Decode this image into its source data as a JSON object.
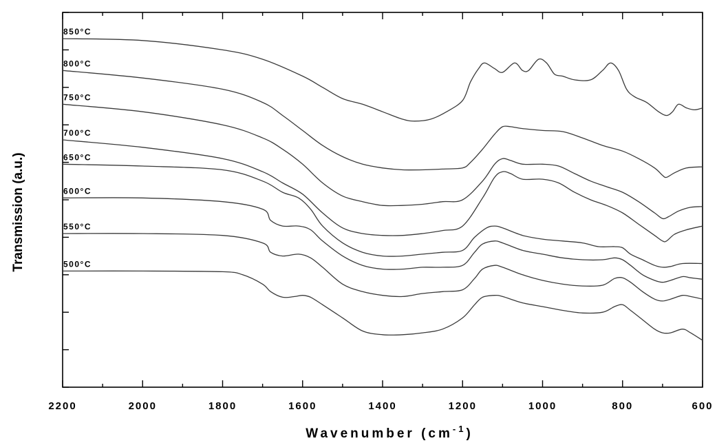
{
  "chart_data": {
    "type": "line",
    "xlabel": "Wavenumber (cm",
    "xlabel_superscript": "-1",
    "xlabel_close": ")",
    "ylabel": "Transmission (a.u.)",
    "xlim": [
      2200,
      600
    ],
    "x_reversed": true,
    "x_ticks": [
      2200,
      2000,
      1800,
      1600,
      1400,
      1200,
      1000,
      800,
      600
    ],
    "ylim": [
      0,
      10
    ],
    "y_tick_labels_shown": false,
    "grid": false,
    "line_color": "#3a3a3a",
    "series": [
      {
        "name": "850°C",
        "points": [
          [
            2200,
            9.3
          ],
          [
            2000,
            9.25
          ],
          [
            1800,
            9.0
          ],
          [
            1700,
            8.75
          ],
          [
            1600,
            8.3
          ],
          [
            1550,
            8.0
          ],
          [
            1500,
            7.7
          ],
          [
            1450,
            7.55
          ],
          [
            1400,
            7.35
          ],
          [
            1350,
            7.15
          ],
          [
            1320,
            7.1
          ],
          [
            1280,
            7.15
          ],
          [
            1240,
            7.35
          ],
          [
            1200,
            7.65
          ],
          [
            1180,
            8.15
          ],
          [
            1160,
            8.5
          ],
          [
            1145,
            8.65
          ],
          [
            1120,
            8.5
          ],
          [
            1100,
            8.4
          ],
          [
            1070,
            8.65
          ],
          [
            1050,
            8.45
          ],
          [
            1035,
            8.45
          ],
          [
            1010,
            8.75
          ],
          [
            990,
            8.65
          ],
          [
            970,
            8.35
          ],
          [
            950,
            8.3
          ],
          [
            920,
            8.2
          ],
          [
            880,
            8.2
          ],
          [
            850,
            8.45
          ],
          [
            830,
            8.65
          ],
          [
            810,
            8.45
          ],
          [
            790,
            7.95
          ],
          [
            770,
            7.75
          ],
          [
            740,
            7.6
          ],
          [
            710,
            7.35
          ],
          [
            690,
            7.25
          ],
          [
            675,
            7.35
          ],
          [
            660,
            7.55
          ],
          [
            640,
            7.45
          ],
          [
            620,
            7.4
          ],
          [
            600,
            7.45
          ]
        ]
      },
      {
        "name": "800°C",
        "points": [
          [
            2200,
            8.45
          ],
          [
            2000,
            8.25
          ],
          [
            1800,
            7.95
          ],
          [
            1700,
            7.6
          ],
          [
            1650,
            7.25
          ],
          [
            1600,
            6.85
          ],
          [
            1550,
            6.45
          ],
          [
            1500,
            6.15
          ],
          [
            1450,
            5.95
          ],
          [
            1400,
            5.85
          ],
          [
            1350,
            5.8
          ],
          [
            1300,
            5.8
          ],
          [
            1250,
            5.82
          ],
          [
            1200,
            5.85
          ],
          [
            1180,
            6.0
          ],
          [
            1150,
            6.35
          ],
          [
            1120,
            6.75
          ],
          [
            1100,
            6.95
          ],
          [
            1080,
            6.95
          ],
          [
            1050,
            6.9
          ],
          [
            1000,
            6.85
          ],
          [
            950,
            6.82
          ],
          [
            900,
            6.65
          ],
          [
            850,
            6.45
          ],
          [
            800,
            6.3
          ],
          [
            760,
            6.1
          ],
          [
            720,
            5.85
          ],
          [
            700,
            5.65
          ],
          [
            690,
            5.6
          ],
          [
            670,
            5.72
          ],
          [
            640,
            5.85
          ],
          [
            600,
            5.88
          ]
        ]
      },
      {
        "name": "750°C",
        "points": [
          [
            2200,
            7.55
          ],
          [
            2000,
            7.35
          ],
          [
            1800,
            7.0
          ],
          [
            1700,
            6.65
          ],
          [
            1650,
            6.35
          ],
          [
            1600,
            5.95
          ],
          [
            1550,
            5.45
          ],
          [
            1500,
            5.1
          ],
          [
            1450,
            4.95
          ],
          [
            1400,
            4.85
          ],
          [
            1350,
            4.85
          ],
          [
            1300,
            4.88
          ],
          [
            1250,
            4.95
          ],
          [
            1200,
            5.0
          ],
          [
            1150,
            5.5
          ],
          [
            1120,
            5.95
          ],
          [
            1100,
            6.1
          ],
          [
            1080,
            6.05
          ],
          [
            1050,
            5.95
          ],
          [
            1000,
            5.95
          ],
          [
            960,
            5.9
          ],
          [
            920,
            5.7
          ],
          [
            880,
            5.5
          ],
          [
            840,
            5.35
          ],
          [
            800,
            5.2
          ],
          [
            760,
            4.95
          ],
          [
            720,
            4.65
          ],
          [
            700,
            4.5
          ],
          [
            685,
            4.55
          ],
          [
            660,
            4.7
          ],
          [
            630,
            4.8
          ],
          [
            600,
            4.82
          ]
        ]
      },
      {
        "name": "700°C",
        "points": [
          [
            2200,
            6.6
          ],
          [
            2000,
            6.4
          ],
          [
            1800,
            6.1
          ],
          [
            1700,
            5.75
          ],
          [
            1650,
            5.45
          ],
          [
            1600,
            5.15
          ],
          [
            1550,
            4.65
          ],
          [
            1500,
            4.25
          ],
          [
            1450,
            4.1
          ],
          [
            1400,
            4.05
          ],
          [
            1350,
            4.05
          ],
          [
            1300,
            4.1
          ],
          [
            1250,
            4.18
          ],
          [
            1200,
            4.3
          ],
          [
            1150,
            5.05
          ],
          [
            1120,
            5.6
          ],
          [
            1100,
            5.75
          ],
          [
            1080,
            5.7
          ],
          [
            1050,
            5.55
          ],
          [
            1000,
            5.55
          ],
          [
            960,
            5.45
          ],
          [
            920,
            5.2
          ],
          [
            880,
            5.0
          ],
          [
            840,
            4.85
          ],
          [
            800,
            4.65
          ],
          [
            760,
            4.35
          ],
          [
            720,
            4.05
          ],
          [
            700,
            3.9
          ],
          [
            690,
            3.9
          ],
          [
            670,
            4.08
          ],
          [
            640,
            4.2
          ],
          [
            600,
            4.3
          ]
        ]
      },
      {
        "name": "650°C",
        "points": [
          [
            2200,
            5.95
          ],
          [
            2000,
            5.9
          ],
          [
            1800,
            5.8
          ],
          [
            1700,
            5.5
          ],
          [
            1650,
            5.2
          ],
          [
            1610,
            5.05
          ],
          [
            1580,
            4.75
          ],
          [
            1550,
            4.3
          ],
          [
            1500,
            3.85
          ],
          [
            1450,
            3.6
          ],
          [
            1400,
            3.5
          ],
          [
            1350,
            3.5
          ],
          [
            1300,
            3.55
          ],
          [
            1250,
            3.6
          ],
          [
            1200,
            3.65
          ],
          [
            1170,
            4.0
          ],
          [
            1140,
            4.25
          ],
          [
            1120,
            4.3
          ],
          [
            1100,
            4.25
          ],
          [
            1050,
            4.05
          ],
          [
            1000,
            3.95
          ],
          [
            950,
            3.9
          ],
          [
            900,
            3.85
          ],
          [
            860,
            3.75
          ],
          [
            820,
            3.75
          ],
          [
            800,
            3.72
          ],
          [
            780,
            3.55
          ],
          [
            750,
            3.4
          ],
          [
            720,
            3.25
          ],
          [
            700,
            3.2
          ],
          [
            680,
            3.22
          ],
          [
            650,
            3.3
          ],
          [
            600,
            3.3
          ]
        ]
      },
      {
        "name": "600°C",
        "points": [
          [
            2200,
            5.05
          ],
          [
            2000,
            5.05
          ],
          [
            1800,
            4.95
          ],
          [
            1700,
            4.75
          ],
          [
            1680,
            4.45
          ],
          [
            1650,
            4.3
          ],
          [
            1610,
            4.3
          ],
          [
            1580,
            4.2
          ],
          [
            1550,
            3.9
          ],
          [
            1500,
            3.5
          ],
          [
            1450,
            3.25
          ],
          [
            1400,
            3.15
          ],
          [
            1350,
            3.15
          ],
          [
            1300,
            3.2
          ],
          [
            1250,
            3.2
          ],
          [
            1200,
            3.25
          ],
          [
            1170,
            3.6
          ],
          [
            1150,
            3.82
          ],
          [
            1120,
            3.9
          ],
          [
            1100,
            3.85
          ],
          [
            1050,
            3.65
          ],
          [
            1000,
            3.55
          ],
          [
            950,
            3.45
          ],
          [
            900,
            3.4
          ],
          [
            850,
            3.4
          ],
          [
            820,
            3.45
          ],
          [
            800,
            3.4
          ],
          [
            780,
            3.25
          ],
          [
            750,
            3.0
          ],
          [
            720,
            2.85
          ],
          [
            700,
            2.8
          ],
          [
            680,
            2.85
          ],
          [
            650,
            2.95
          ],
          [
            630,
            2.92
          ],
          [
            600,
            2.88
          ]
        ]
      },
      {
        "name": "550°C",
        "points": [
          [
            2200,
            4.1
          ],
          [
            2000,
            4.1
          ],
          [
            1800,
            4.05
          ],
          [
            1700,
            3.85
          ],
          [
            1680,
            3.6
          ],
          [
            1650,
            3.5
          ],
          [
            1610,
            3.55
          ],
          [
            1580,
            3.45
          ],
          [
            1550,
            3.2
          ],
          [
            1500,
            2.75
          ],
          [
            1450,
            2.55
          ],
          [
            1400,
            2.45
          ],
          [
            1350,
            2.42
          ],
          [
            1300,
            2.5
          ],
          [
            1250,
            2.55
          ],
          [
            1200,
            2.6
          ],
          [
            1170,
            2.9
          ],
          [
            1150,
            3.15
          ],
          [
            1120,
            3.25
          ],
          [
            1100,
            3.2
          ],
          [
            1050,
            3.0
          ],
          [
            1000,
            2.85
          ],
          [
            950,
            2.75
          ],
          [
            900,
            2.7
          ],
          [
            850,
            2.72
          ],
          [
            820,
            2.9
          ],
          [
            800,
            2.92
          ],
          [
            780,
            2.8
          ],
          [
            750,
            2.55
          ],
          [
            720,
            2.35
          ],
          [
            700,
            2.3
          ],
          [
            680,
            2.35
          ],
          [
            650,
            2.45
          ],
          [
            630,
            2.42
          ],
          [
            600,
            2.35
          ]
        ]
      },
      {
        "name": "500°C",
        "points": [
          [
            2200,
            3.1
          ],
          [
            2000,
            3.1
          ],
          [
            1800,
            3.08
          ],
          [
            1750,
            3.0
          ],
          [
            1700,
            2.75
          ],
          [
            1680,
            2.55
          ],
          [
            1650,
            2.4
          ],
          [
            1620,
            2.42
          ],
          [
            1600,
            2.45
          ],
          [
            1580,
            2.4
          ],
          [
            1550,
            2.2
          ],
          [
            1500,
            1.85
          ],
          [
            1450,
            1.5
          ],
          [
            1400,
            1.4
          ],
          [
            1350,
            1.4
          ],
          [
            1300,
            1.45
          ],
          [
            1250,
            1.55
          ],
          [
            1200,
            1.85
          ],
          [
            1170,
            2.2
          ],
          [
            1150,
            2.4
          ],
          [
            1120,
            2.45
          ],
          [
            1100,
            2.42
          ],
          [
            1050,
            2.25
          ],
          [
            1000,
            2.15
          ],
          [
            950,
            2.05
          ],
          [
            900,
            1.98
          ],
          [
            850,
            2.0
          ],
          [
            820,
            2.15
          ],
          [
            800,
            2.2
          ],
          [
            780,
            2.05
          ],
          [
            750,
            1.8
          ],
          [
            720,
            1.55
          ],
          [
            700,
            1.45
          ],
          [
            680,
            1.45
          ],
          [
            650,
            1.55
          ],
          [
            630,
            1.45
          ],
          [
            600,
            1.25
          ]
        ]
      }
    ]
  }
}
